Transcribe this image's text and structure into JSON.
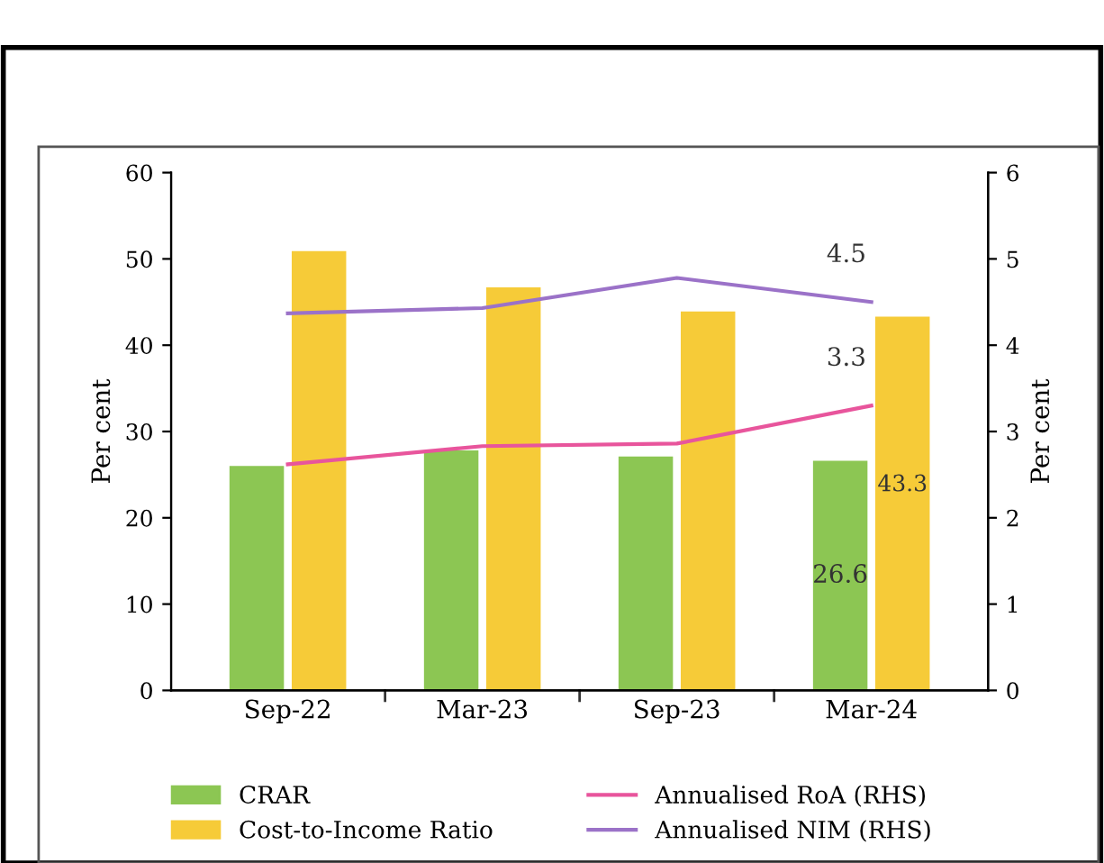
{
  "chart_data": {
    "type": "bar",
    "categories": [
      "Sep-22",
      "Mar-23",
      "Sep-23",
      "Mar-24"
    ],
    "ylabel": "Per cent",
    "y2label": "Per cent",
    "ylim": [
      0,
      60
    ],
    "yticks": [
      0,
      10,
      20,
      30,
      40,
      50,
      60
    ],
    "y2lim": [
      0,
      6
    ],
    "y2ticks": [
      0,
      1,
      2,
      3,
      4,
      5,
      6
    ],
    "grid": false,
    "legend": "bottom",
    "series": [
      {
        "name": "CRAR",
        "color": "#8cc653",
        "values": [
          26.0,
          27.8,
          27.1,
          26.6
        ],
        "value_labels": [
          null,
          null,
          null,
          "26.6"
        ]
      },
      {
        "name": "Cost-to-Income Ratio",
        "color": "#f6cb38",
        "values": [
          50.9,
          46.7,
          43.9,
          43.3
        ],
        "value_labels": [
          null,
          null,
          null,
          "43.3"
        ]
      },
      {
        "name": "Annualised RoA (RHS)",
        "type": "line",
        "axis": "y2",
        "color": "#e8559c",
        "values": [
          2.62,
          2.83,
          2.86,
          3.3
        ],
        "value_labels": [
          null,
          null,
          null,
          "3.3"
        ]
      },
      {
        "name": "Annualised NIM (RHS)",
        "type": "line",
        "axis": "y2",
        "color": "#9b72c8",
        "values": [
          4.37,
          4.43,
          4.78,
          4.5
        ],
        "value_labels": [
          null,
          null,
          null,
          "4.5"
        ]
      }
    ]
  }
}
